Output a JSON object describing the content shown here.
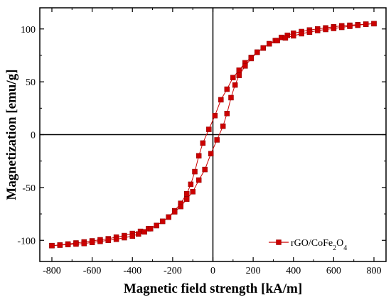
{
  "chart_data": {
    "type": "scatter",
    "xlabel": "Magnetic field strength [kA/m]",
    "ylabel": "Magnetization [emu/g]",
    "xlim": [
      -860,
      860
    ],
    "ylim": [
      -120,
      120
    ],
    "xticks": [
      -800,
      -600,
      -400,
      -200,
      0,
      200,
      400,
      600,
      800
    ],
    "yticks": [
      -100,
      -50,
      0,
      50,
      100
    ],
    "grid": false,
    "legend_position": "bottom-right",
    "legend": {
      "label_parts": [
        "rGO/CoFe",
        "2",
        "O",
        "4"
      ]
    },
    "zero_lines": true,
    "series": [
      {
        "name": "rGO/CoFe2O4",
        "color": "#cc0000",
        "marker": "square",
        "branch": "descending",
        "x": [
          800,
          760,
          720,
          680,
          640,
          600,
          560,
          520,
          480,
          440,
          400,
          370,
          340,
          310,
          280,
          250,
          220,
          190,
          160,
          130,
          100,
          70,
          40,
          10,
          -20,
          -50,
          -70,
          -90,
          -110,
          -130,
          -160,
          -190,
          -220,
          -250,
          -280,
          -320,
          -360,
          -400,
          -440,
          -480,
          -520,
          -560,
          -600,
          -640,
          -680,
          -720,
          -760,
          -800
        ],
        "y": [
          105,
          104.5,
          104,
          103.5,
          103,
          102,
          101,
          100,
          99,
          97.5,
          96,
          94,
          92,
          89,
          86,
          82,
          78,
          73,
          68,
          61,
          54,
          43,
          33,
          18,
          5,
          -8,
          -20,
          -35,
          -47,
          -56,
          -65,
          -72,
          -78,
          -82,
          -86,
          -89,
          -91.5,
          -93.5,
          -95.5,
          -97,
          -98.5,
          -99.5,
          -100.5,
          -101.5,
          -102.5,
          -103.5,
          -104.5,
          -105
        ]
      },
      {
        "name": "rGO/CoFe2O4",
        "color": "#cc0000",
        "marker": "square",
        "branch": "ascending",
        "x": [
          -800,
          -760,
          -720,
          -680,
          -640,
          -600,
          -560,
          -520,
          -480,
          -440,
          -400,
          -370,
          -340,
          -310,
          -280,
          -250,
          -220,
          -190,
          -160,
          -130,
          -100,
          -70,
          -40,
          -10,
          20,
          50,
          70,
          90,
          110,
          130,
          160,
          190,
          220,
          250,
          280,
          320,
          360,
          400,
          440,
          480,
          520,
          560,
          600,
          640,
          680,
          720,
          760,
          800
        ],
        "y": [
          -105,
          -104.5,
          -104,
          -103.5,
          -103,
          -102,
          -101,
          -100,
          -99,
          -97.5,
          -96,
          -94,
          -92,
          -89,
          -86,
          -82,
          -78,
          -73,
          -68,
          -61,
          -54,
          -43,
          -33,
          -18,
          -5,
          8,
          20,
          35,
          47,
          56,
          65,
          72,
          78,
          82,
          86,
          89,
          91.5,
          93.5,
          95.5,
          97,
          98.5,
          99.5,
          100.5,
          101.5,
          102.5,
          103.5,
          104.5,
          105
        ]
      }
    ]
  }
}
